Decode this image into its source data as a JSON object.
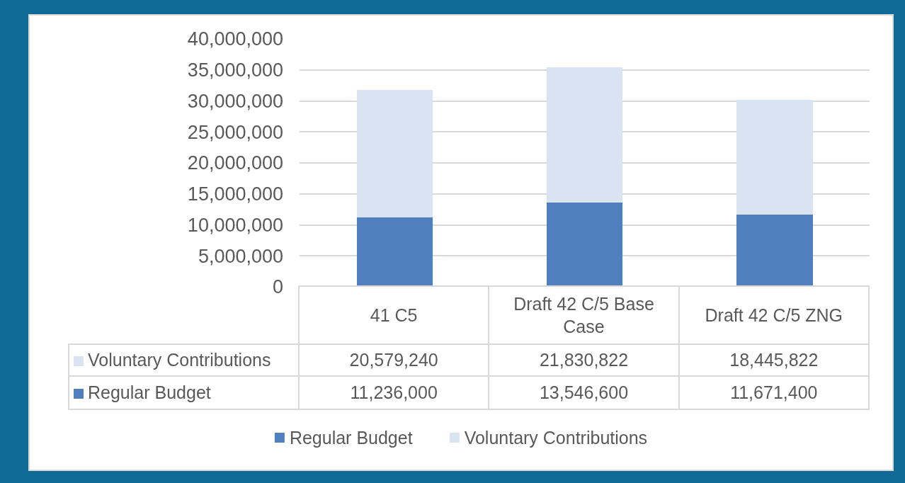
{
  "chart_data": {
    "type": "bar",
    "stacked": true,
    "categories": [
      "41 C5",
      "Draft 42 C/5 Base Case",
      "Draft 42 C/5 ZNG"
    ],
    "series": [
      {
        "name": "Regular Budget",
        "color": "#4f7fbd",
        "values": [
          11236000,
          13546600,
          11671400
        ],
        "value_labels": [
          "11,236,000",
          "13,546,600",
          "11,671,400"
        ]
      },
      {
        "name": "Voluntary Contributions",
        "color": "#dae3f1",
        "values": [
          20579240,
          21830822,
          18445822
        ],
        "value_labels": [
          "20,579,240",
          "21,830,822",
          "18,445,822"
        ]
      }
    ],
    "ylim": [
      0,
      40000000
    ],
    "yticks": [
      0,
      {
        "value": 5000000,
        "label": "5,000,000"
      },
      {
        "value": 10000000,
        "label": "10,000,000"
      },
      {
        "value": 15000000,
        "label": "15,000,000"
      },
      {
        "value": 20000000,
        "label": "20,000,000"
      },
      {
        "value": 25000000,
        "label": "25,000,000"
      },
      {
        "value": 30000000,
        "label": "30,000,000"
      },
      {
        "value": 35000000,
        "label": "35,000,000"
      },
      {
        "value": 40000000,
        "label": "40,000,000"
      }
    ],
    "grid": "y",
    "legend": "bottom"
  }
}
